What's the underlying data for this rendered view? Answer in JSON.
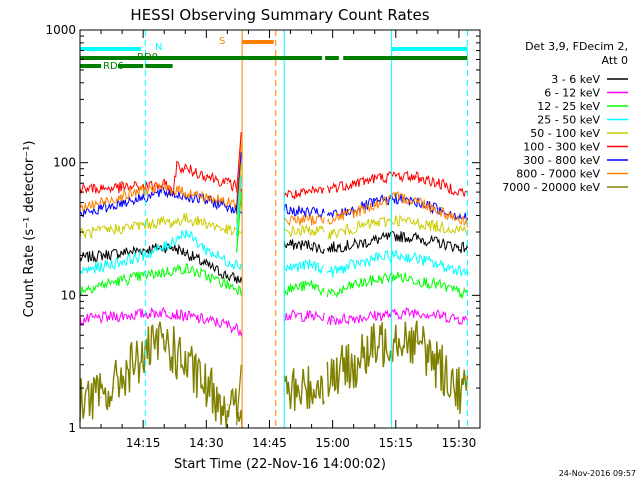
{
  "chart_data": {
    "type": "line",
    "title": "HESSI Observing Summary Count Rates",
    "xlabel": "Start Time (22-Nov-16 14:00:02)",
    "ylabel": "Count Rate (s⁻¹ detector⁻¹)",
    "x_unit": "minutes after 14:00:02",
    "xlim": [
      0,
      95
    ],
    "ylim": [
      1,
      1000
    ],
    "yscale": "log",
    "grid": false,
    "legend_position": "right",
    "x_ticks": [
      {
        "value": 15,
        "label": "14:15"
      },
      {
        "value": 30,
        "label": "14:30"
      },
      {
        "value": 45,
        "label": "14:45"
      },
      {
        "value": 60,
        "label": "15:00"
      },
      {
        "value": 75,
        "label": "15:15"
      },
      {
        "value": 90,
        "label": "15:30"
      }
    ],
    "y_ticks": [
      {
        "value": 1,
        "label": "1"
      },
      {
        "value": 10,
        "label": "10"
      },
      {
        "value": 100,
        "label": "100"
      },
      {
        "value": 1000,
        "label": "1000"
      }
    ],
    "legend_header": [
      "Det 3,9, FDecim 2,",
      "Att 0"
    ],
    "data_gaps": [
      [
        38.5,
        48.5
      ],
      [
        58.0,
        58.6
      ]
    ],
    "series": [
      {
        "name": "3 - 6 keV",
        "color": "#000000",
        "x": [
          0,
          5,
          10,
          15,
          20,
          22,
          25,
          30,
          35,
          38,
          48.5,
          50,
          55,
          58,
          60,
          65,
          70,
          75,
          80,
          85,
          90,
          92
        ],
        "y": [
          19,
          20,
          21,
          22,
          23,
          23,
          21,
          17,
          14,
          13,
          24,
          24,
          24,
          22,
          23,
          24,
          26,
          28,
          27,
          25,
          23,
          23
        ]
      },
      {
        "name": "6 - 12 keV",
        "color": "#ff00ff",
        "x": [
          0,
          10,
          20,
          25,
          30,
          35,
          38,
          48.5,
          55,
          60,
          70,
          80,
          92
        ],
        "y": [
          6.5,
          7.0,
          7.5,
          7.0,
          6.5,
          6.0,
          5.5,
          7.0,
          7.0,
          6.5,
          7.0,
          7.5,
          6.5
        ]
      },
      {
        "name": "12 - 25 keV",
        "color": "#00ff00",
        "x": [
          0,
          10,
          15,
          20,
          25,
          30,
          35,
          38,
          48.5,
          55,
          60,
          65,
          70,
          75,
          80,
          85,
          92
        ],
        "y": [
          11,
          13,
          14,
          15,
          16,
          14,
          12,
          11,
          11,
          12,
          10,
          12,
          13,
          14,
          13,
          12,
          10
        ]
      },
      {
        "name": "25 - 50 keV",
        "color": "#00ffff",
        "x": [
          0,
          10,
          15,
          20,
          25,
          30,
          35,
          38,
          48.5,
          55,
          60,
          65,
          70,
          75,
          80,
          85,
          92
        ],
        "y": [
          15,
          18,
          20,
          23,
          30,
          22,
          18,
          17,
          16,
          17,
          15,
          17,
          19,
          20,
          19,
          17,
          15
        ]
      },
      {
        "name": "50 - 100 keV",
        "color": "#cccc00",
        "x": [
          0,
          10,
          15,
          20,
          22,
          25,
          30,
          35,
          38,
          48.5,
          55,
          60,
          65,
          70,
          75,
          80,
          85,
          92
        ],
        "y": [
          29,
          32,
          34,
          36,
          35,
          38,
          35,
          31,
          29,
          30,
          31,
          29,
          32,
          35,
          37,
          35,
          33,
          31
        ]
      },
      {
        "name": "100 - 300 keV",
        "color": "#ff0000",
        "x": [
          0,
          5,
          10,
          15,
          20,
          22,
          23,
          25,
          30,
          35,
          38,
          48.5,
          52,
          55,
          60,
          65,
          70,
          75,
          80,
          85,
          92
        ],
        "y": [
          63,
          64,
          65,
          66,
          68,
          60,
          95,
          90,
          80,
          70,
          65,
          58,
          57,
          60,
          65,
          70,
          76,
          80,
          78,
          70,
          58
        ]
      },
      {
        "name": "300 - 800 keV",
        "color": "#0000ff",
        "x": [
          0,
          5,
          10,
          15,
          20,
          25,
          30,
          35,
          38,
          48.5,
          55,
          60,
          65,
          70,
          75,
          80,
          85,
          92
        ],
        "y": [
          41,
          45,
          50,
          55,
          60,
          56,
          52,
          47,
          44,
          44,
          42,
          40,
          44,
          50,
          54,
          50,
          45,
          38
        ]
      },
      {
        "name": "800 - 7000 keV",
        "color": "#ff8000",
        "x": [
          0,
          5,
          10,
          15,
          20,
          25,
          30,
          35,
          38,
          48.5,
          55,
          60,
          65,
          70,
          75,
          80,
          85,
          92
        ],
        "y": [
          45,
          50,
          56,
          62,
          65,
          60,
          55,
          50,
          48,
          37,
          37,
          38,
          42,
          48,
          55,
          52,
          44,
          35
        ]
      },
      {
        "name": "7000 - 20000 keV",
        "color": "#808000",
        "x": [
          0,
          5,
          8,
          10,
          15,
          20,
          25,
          30,
          35,
          38,
          48.5,
          55,
          60,
          65,
          70,
          75,
          80,
          85,
          90,
          92
        ],
        "y": [
          1.7,
          1.7,
          2.0,
          2.5,
          3.5,
          4.5,
          3.0,
          2.0,
          1.5,
          1.3,
          1.8,
          2.0,
          2.5,
          3.0,
          4.0,
          5.0,
          4.5,
          3.0,
          2.0,
          1.8
        ]
      }
    ],
    "state_bars": [
      {
        "label": "N",
        "color": "#00ffff",
        "segments": [
          [
            0,
            14.5
          ],
          [
            74,
            92
          ]
        ]
      },
      {
        "label": "RD0",
        "color": "#008000",
        "segments": [
          [
            0,
            57.5
          ],
          [
            58.2,
            61.5
          ],
          [
            62.5,
            92
          ]
        ]
      },
      {
        "label": "RD6",
        "color": "#008000",
        "segments": [
          [
            0,
            5
          ],
          [
            9,
            15
          ],
          [
            15.5,
            22
          ]
        ]
      },
      {
        "label": "S",
        "color": "#ff8000",
        "segments": [
          [
            38.5,
            46
          ]
        ]
      }
    ],
    "vertical_markers": [
      {
        "x": 15.5,
        "color": "#00ffff",
        "style": "dashed"
      },
      {
        "x": 38.5,
        "color": "#ff8000",
        "style": "solid"
      },
      {
        "x": 46.5,
        "color": "#ff8000",
        "style": "dashed"
      },
      {
        "x": 48.5,
        "color": "#00ffff",
        "style": "solid"
      },
      {
        "x": 74,
        "color": "#00ffff",
        "style": "solid"
      },
      {
        "x": 92,
        "color": "#00ffff",
        "style": "dashed"
      }
    ]
  },
  "footer_timestamp": "24-Nov-2016 09:57"
}
